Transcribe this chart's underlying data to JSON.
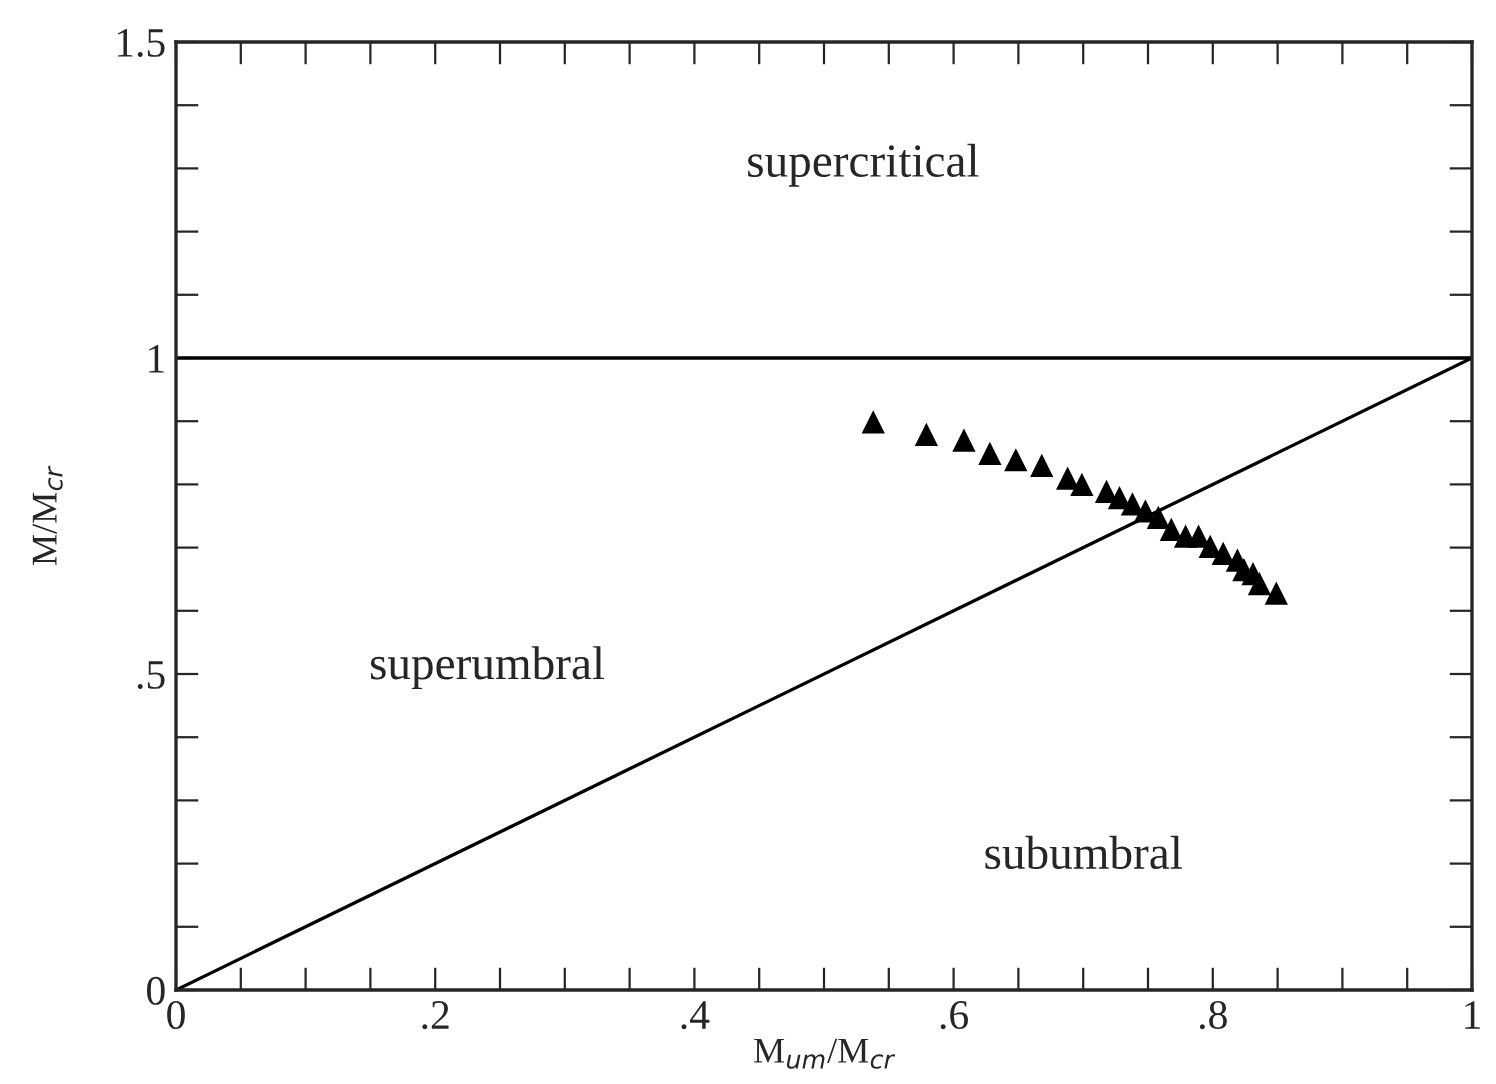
{
  "chart_data": {
    "type": "scatter",
    "xlabel": "M$_{um}$/M$_{cr}$",
    "ylabel": "M/M$_{cr}$",
    "xlim": [
      0,
      1
    ],
    "ylim": [
      0,
      1.5
    ],
    "xticks": [
      0,
      {
        "value": 0.05,
        "label": null
      },
      {
        "value": 0.1,
        "label": null
      },
      {
        "value": 0.15,
        "label": null
      },
      {
        "value": 0.2,
        "label": ".2"
      },
      {
        "value": 0.25,
        "label": null
      },
      {
        "value": 0.3,
        "label": null
      },
      {
        "value": 0.35,
        "label": null
      },
      {
        "value": 0.4,
        "label": ".4"
      },
      {
        "value": 0.45,
        "label": null
      },
      {
        "value": 0.5,
        "label": null
      },
      {
        "value": 0.55,
        "label": null
      },
      {
        "value": 0.6,
        "label": ".6"
      },
      {
        "value": 0.65,
        "label": null
      },
      {
        "value": 0.7,
        "label": null
      },
      {
        "value": 0.75,
        "label": null
      },
      {
        "value": 0.8,
        "label": ".8"
      },
      {
        "value": 0.85,
        "label": null
      },
      {
        "value": 0.9,
        "label": null
      },
      {
        "value": 0.95,
        "label": null
      },
      1
    ],
    "yticks": [
      0,
      {
        "value": 0.1,
        "label": null
      },
      {
        "value": 0.2,
        "label": null
      },
      {
        "value": 0.3,
        "label": null
      },
      {
        "value": 0.4,
        "label": null
      },
      {
        "value": 0.5,
        "label": ".5"
      },
      {
        "value": 0.6,
        "label": null
      },
      {
        "value": 0.7,
        "label": null
      },
      {
        "value": 0.8,
        "label": null
      },
      {
        "value": 0.9,
        "label": null
      },
      1,
      {
        "value": 1.1,
        "label": null
      },
      {
        "value": 1.2,
        "label": null
      },
      {
        "value": 1.3,
        "label": null
      },
      {
        "value": 1.4,
        "label": null
      },
      1.5
    ],
    "grid": false,
    "legend": false,
    "marker": "triangle",
    "ref_lines": [
      {
        "axis": "y",
        "value": 1,
        "color": "#000000",
        "line_style": "solid"
      }
    ],
    "series": [
      {
        "color": "#000000",
        "x": [
          0.538,
          0.579,
          0.608,
          0.628,
          0.648,
          0.668,
          0.688,
          0.699,
          0.718,
          0.728,
          0.738,
          0.748,
          0.758,
          0.768,
          0.779,
          0.789,
          0.798,
          0.808,
          0.819,
          0.824,
          0.831,
          0.836,
          0.849
        ],
        "values": [
          0.899,
          0.879,
          0.87,
          0.849,
          0.839,
          0.83,
          0.81,
          0.8,
          0.789,
          0.779,
          0.769,
          0.758,
          0.748,
          0.729,
          0.718,
          0.718,
          0.702,
          0.691,
          0.68,
          0.665,
          0.659,
          0.643,
          0.628
        ]
      },
      {
        "type": "line",
        "color": "#000000",
        "line_style": "solid",
        "marker": "none",
        "x": [
          0,
          1
        ],
        "values": [
          0,
          1
        ]
      }
    ],
    "annotations": [
      "supercritical",
      "superumbral",
      "subumbral"
    ]
  }
}
